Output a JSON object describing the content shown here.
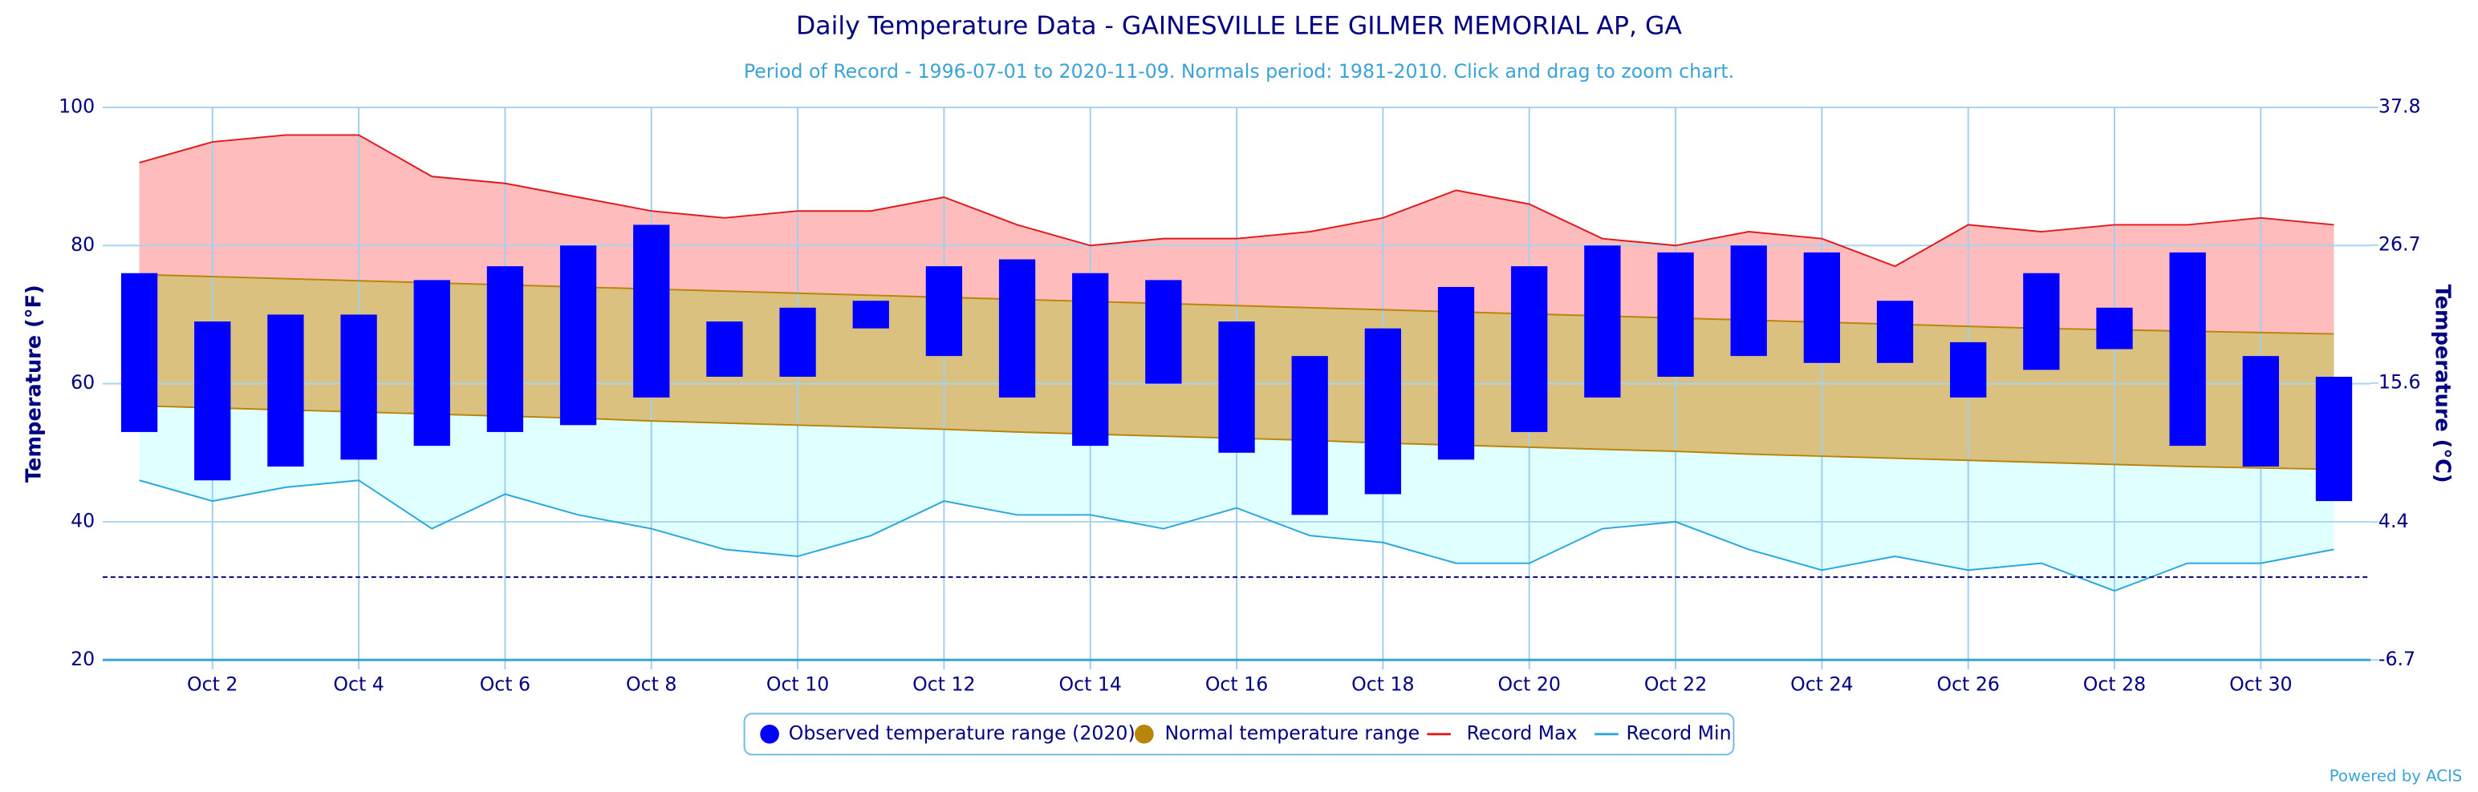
{
  "chart_data": {
    "type": "temperature-range",
    "title": "Daily Temperature Data - GAINESVILLE LEE GILMER MEMORIAL AP, GA",
    "subtitle": "Period of Record - 1996-07-01 to 2020-11-09. Normals period: 1981-2010. Click and drag to zoom chart.",
    "y_label": "Temperature (°F)",
    "y2_label": "Temperature (°C)",
    "credit": "Powered by ACIS",
    "categories": [
      null,
      "Oct 2",
      null,
      "Oct 4",
      null,
      "Oct 6",
      null,
      "Oct 8",
      null,
      "Oct 10",
      null,
      "Oct 12",
      null,
      "Oct 14",
      null,
      "Oct 16",
      null,
      "Oct 18",
      null,
      "Oct 20",
      null,
      "Oct 22",
      null,
      "Oct 24",
      null,
      "Oct 26",
      null,
      "Oct 28",
      null,
      "Oct 30",
      null
    ],
    "ylim": [
      20,
      100
    ],
    "yticks": [
      20,
      40,
      60,
      80,
      100
    ],
    "y2lim": [
      -6.7,
      37.8
    ],
    "y2ticks": [
      -6.7,
      4.4,
      15.6,
      26.7,
      37.8
    ],
    "reference_line": 32,
    "grid": true,
    "legend": "bottom",
    "series": [
      {
        "name": "Observed temperature range (2020)",
        "color": "#0000ff",
        "high": [
          76,
          69,
          70,
          70,
          75,
          77,
          80,
          83,
          69,
          71,
          72,
          77,
          78,
          76,
          75,
          69,
          64,
          68,
          74,
          77,
          80,
          79,
          80,
          79,
          72,
          66,
          76,
          71,
          79,
          64,
          61
        ],
        "low": [
          53,
          46,
          48,
          49,
          51,
          53,
          54,
          58,
          61,
          61,
          68,
          64,
          58,
          51,
          60,
          50,
          41,
          44,
          49,
          53,
          58,
          61,
          64,
          63,
          63,
          58,
          62,
          65,
          51,
          48,
          43
        ]
      },
      {
        "name": "Normal temperature range",
        "color": "#b8860b",
        "fill": "#dbc17f",
        "high": [
          75.8,
          75.5,
          75.2,
          74.9,
          74.6,
          74.3,
          74.0,
          73.7,
          73.4,
          73.1,
          72.8,
          72.5,
          72.2,
          71.9,
          71.6,
          71.3,
          71.0,
          70.7,
          70.4,
          70.1,
          69.8,
          69.5,
          69.2,
          68.9,
          68.6,
          68.3,
          68.0,
          67.8,
          67.6,
          67.4,
          67.2
        ],
        "low": [
          56.8,
          56.5,
          56.2,
          55.9,
          55.6,
          55.3,
          55.0,
          54.6,
          54.3,
          54.0,
          53.7,
          53.4,
          53.0,
          52.7,
          52.4,
          52.1,
          51.8,
          51.4,
          51.1,
          50.8,
          50.5,
          50.2,
          49.8,
          49.5,
          49.2,
          48.9,
          48.6,
          48.3,
          48.0,
          47.8,
          47.6
        ]
      },
      {
        "name": "Record Max",
        "color": "#e0191c",
        "fill": "#ffbcbc",
        "values": [
          92,
          95,
          96,
          96,
          90,
          89,
          87,
          85,
          84,
          85,
          85,
          87,
          83,
          80,
          81,
          81,
          82,
          84,
          88,
          86,
          81,
          80,
          82,
          81,
          77,
          83,
          82,
          83,
          83,
          84,
          83
        ]
      },
      {
        "name": "Record Min",
        "color": "#2aa7dc",
        "fill": "#e0ffff",
        "values": [
          46,
          43,
          45,
          46,
          39,
          44,
          41,
          39,
          36,
          35,
          38,
          43,
          41,
          41,
          39,
          42,
          38,
          37,
          34,
          34,
          39,
          40,
          36,
          33,
          35,
          33,
          34,
          30,
          34,
          34,
          36
        ]
      }
    ]
  }
}
